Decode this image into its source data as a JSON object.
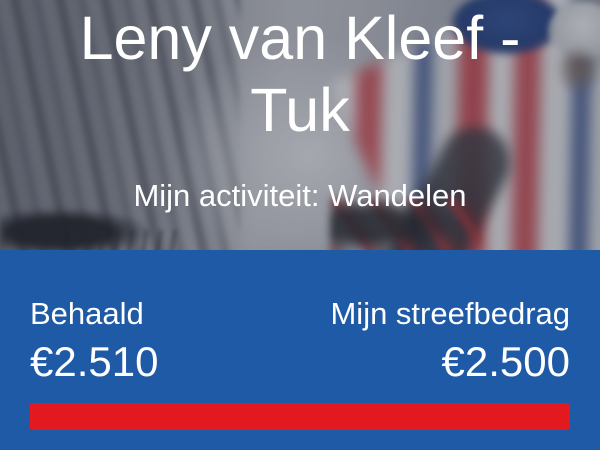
{
  "hero": {
    "title": "Leny van Kleef - Tuk",
    "subtitle": "Mijn activiteit: Wandelen",
    "photo_description": "cyclists-on-mountain-photo"
  },
  "stats": {
    "achieved_label": "Behaald",
    "achieved_amount": "€2.510",
    "target_label": "Mijn streefbedrag",
    "target_amount": "€2.500",
    "progress_percent": 100
  },
  "colors": {
    "panel_blue": "#1f5aa6",
    "progress_red": "#e21a1f",
    "text_white": "#ffffff"
  }
}
